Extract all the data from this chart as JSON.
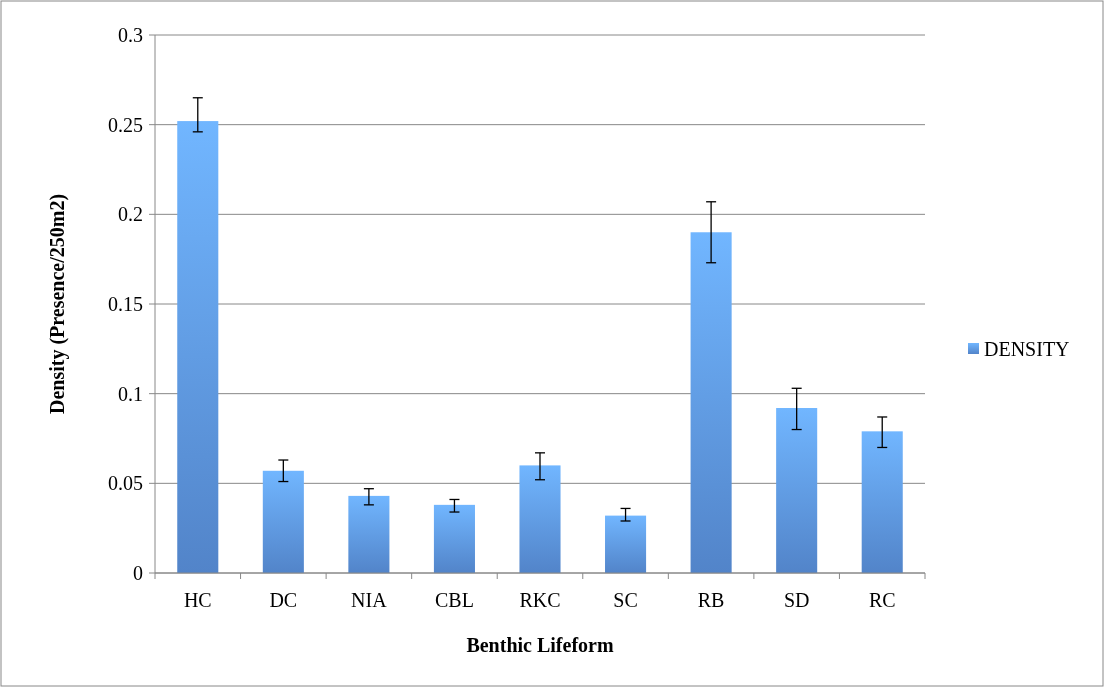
{
  "chart_data": {
    "type": "bar",
    "xlabel": "Benthic Lifeform",
    "ylabel": "Density (Presence/250m2)",
    "categories": [
      "HC",
      "DC",
      "NIA",
      "CBL",
      "RKC",
      "SC",
      "RB",
      "SD",
      "RC"
    ],
    "series": [
      {
        "name": "DENSITY",
        "color": "#5b93e0",
        "values": [
          0.252,
          0.057,
          0.043,
          0.038,
          0.06,
          0.032,
          0.19,
          0.092,
          0.079
        ],
        "errors": [
          [
            0.246,
            0.265
          ],
          [
            0.051,
            0.063
          ],
          [
            0.038,
            0.047
          ],
          [
            0.034,
            0.041
          ],
          [
            0.052,
            0.067
          ],
          [
            0.029,
            0.036
          ],
          [
            0.173,
            0.207
          ],
          [
            0.08,
            0.103
          ],
          [
            0.07,
            0.087
          ]
        ]
      }
    ],
    "ylim": [
      0,
      0.3
    ],
    "yticks": [
      0,
      0.05,
      0.1,
      0.15,
      0.2,
      0.25,
      0.3
    ],
    "grid": "y",
    "legend": "right"
  }
}
